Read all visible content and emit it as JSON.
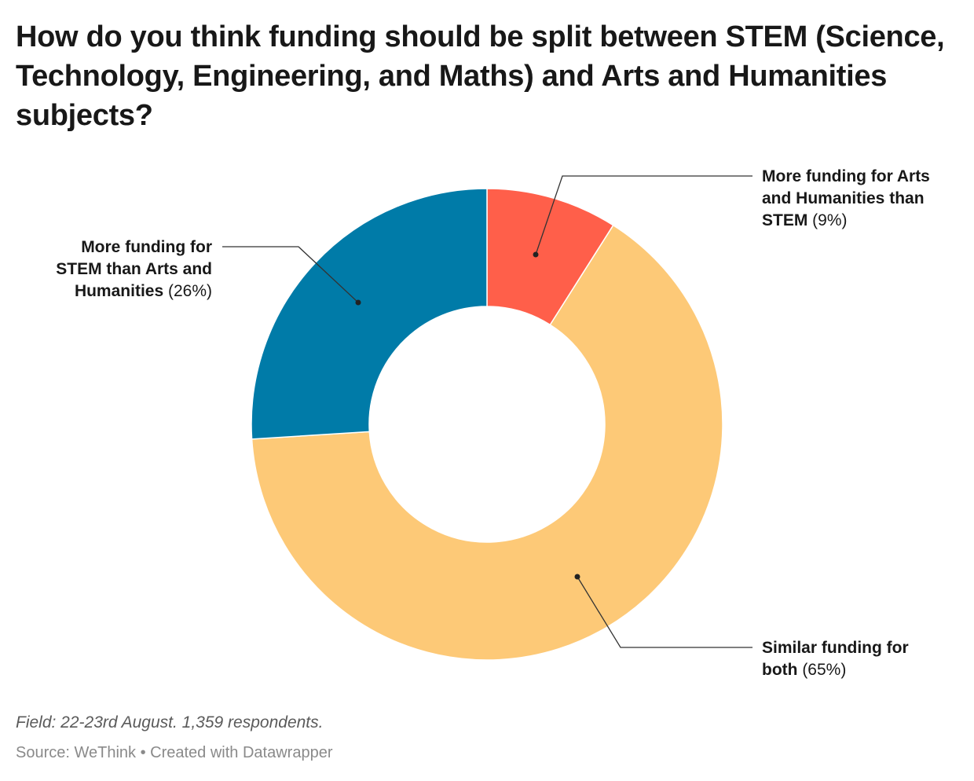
{
  "header": {
    "title": "How do you think funding should be split between STEM (Science, Technology, Engineering, and Maths) and Arts and Humanities subjects?"
  },
  "chart_data": {
    "type": "pie",
    "donut": true,
    "start_angle_deg": 0,
    "slices": [
      {
        "label_lines": [
          "More funding for Arts",
          "and Humanities than",
          "STEM"
        ],
        "value": 9,
        "value_text": "(9%)",
        "color": "#ff5f4a"
      },
      {
        "label_lines": [
          "Similar funding for",
          "both"
        ],
        "value": 65,
        "value_text": "(65%)",
        "color": "#fdc977"
      },
      {
        "label_lines": [
          "More funding for",
          "STEM than Arts and",
          "Humanities"
        ],
        "value": 26,
        "value_text": "(26%)",
        "color": "#007ba8"
      }
    ]
  },
  "footer": {
    "notes": "Field: 22-23rd August. 1,359 respondents.",
    "source": "Source: WeThink • Created with Datawrapper"
  }
}
